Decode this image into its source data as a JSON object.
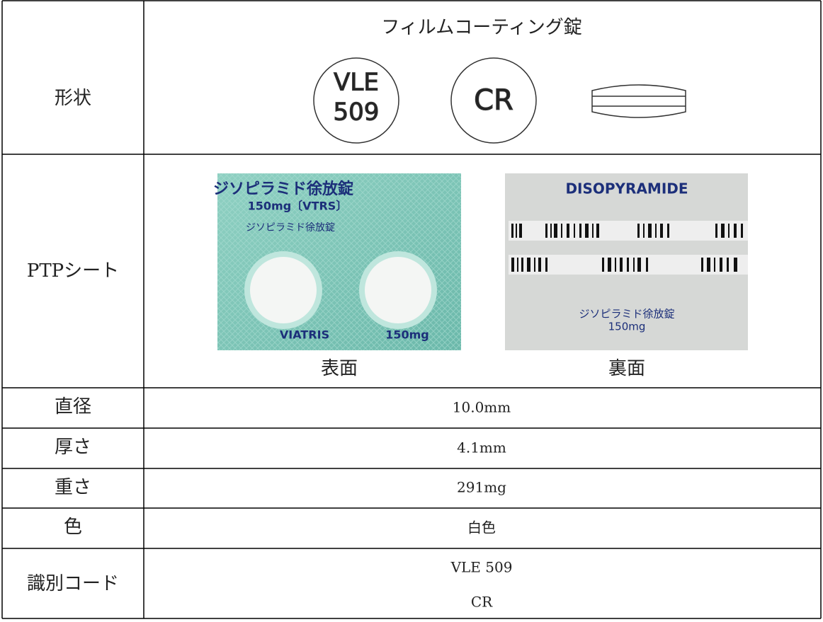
{
  "table": {
    "rows": [
      {
        "label": "形状",
        "shape": {
          "type": "フィルムコーティング錠",
          "front": [
            "VLE",
            "509"
          ],
          "back": "CR"
        }
      },
      {
        "label": "PTPシート",
        "front": {
          "caption": "表面",
          "texts": [
            "ジソピラミド徐放錠",
            "150mg〔VTRS〕",
            "ジソピラミド徐放錠",
            "VIATRIS",
            "150mg"
          ]
        },
        "back": {
          "caption": "裏面",
          "texts": [
            "DISOPYRAMIDE",
            "ジソピラミド徐放錠",
            "150mg"
          ]
        }
      },
      {
        "label": "直径",
        "value": "10.0mm"
      },
      {
        "label": "厚さ",
        "value": "4.1mm"
      },
      {
        "label": "重さ",
        "value": "291mg"
      },
      {
        "label": "色",
        "value": "白色"
      },
      {
        "label": "識別コード",
        "value": [
          "VLE 509",
          "CR"
        ]
      }
    ]
  }
}
